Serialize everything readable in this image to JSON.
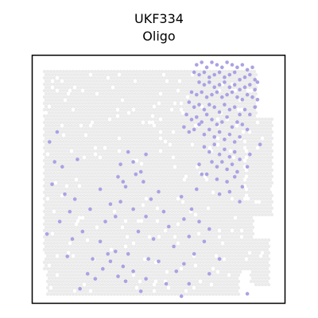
{
  "chart_data": {
    "type": "scatter",
    "title": "UKF334",
    "subtitle": "Oligo",
    "xlabel": "",
    "ylabel": "",
    "xlim": [
      0,
      100
    ],
    "ylim": [
      0,
      100
    ],
    "grid": false,
    "background_color": "#ebebeb",
    "highlight_color": "#a9a2e3",
    "frame_color": "#000000",
    "series": [
      {
        "values": [
          [
            65,
            96
          ],
          [
            67,
            97
          ],
          [
            69,
            95
          ],
          [
            71,
            97
          ],
          [
            73,
            96
          ],
          [
            75,
            95
          ],
          [
            77,
            97
          ],
          [
            79,
            96
          ],
          [
            81,
            95
          ],
          [
            83,
            96
          ],
          [
            85,
            94
          ],
          [
            64,
            93
          ],
          [
            66,
            92
          ],
          [
            68,
            93
          ],
          [
            70,
            91
          ],
          [
            72,
            92
          ],
          [
            74,
            93
          ],
          [
            76,
            91
          ],
          [
            78,
            92
          ],
          [
            80,
            93
          ],
          [
            82,
            90
          ],
          [
            84,
            91
          ],
          [
            86,
            92
          ],
          [
            88,
            90
          ],
          [
            87,
            95
          ],
          [
            66,
            89
          ],
          [
            68,
            88
          ],
          [
            70,
            89
          ],
          [
            72,
            87
          ],
          [
            74,
            88
          ],
          [
            76,
            89
          ],
          [
            78,
            87
          ],
          [
            80,
            88
          ],
          [
            82,
            86
          ],
          [
            84,
            87
          ],
          [
            86,
            88
          ],
          [
            88,
            86
          ],
          [
            89,
            89
          ],
          [
            63,
            85
          ],
          [
            65,
            84
          ],
          [
            67,
            85
          ],
          [
            69,
            83
          ],
          [
            71,
            84
          ],
          [
            73,
            85
          ],
          [
            75,
            83
          ],
          [
            77,
            84
          ],
          [
            79,
            85
          ],
          [
            81,
            83
          ],
          [
            83,
            82
          ],
          [
            85,
            84
          ],
          [
            87,
            83
          ],
          [
            89,
            82
          ],
          [
            62,
            81
          ],
          [
            64,
            79
          ],
          [
            66,
            80
          ],
          [
            68,
            78
          ],
          [
            70,
            80
          ],
          [
            72,
            79
          ],
          [
            74,
            77
          ],
          [
            76,
            80
          ],
          [
            78,
            78
          ],
          [
            80,
            79
          ],
          [
            82,
            76
          ],
          [
            84,
            78
          ],
          [
            86,
            76
          ],
          [
            88,
            79
          ],
          [
            61,
            76
          ],
          [
            63,
            74
          ],
          [
            65,
            75
          ],
          [
            67,
            73
          ],
          [
            69,
            76
          ],
          [
            71,
            74
          ],
          [
            73,
            72
          ],
          [
            75,
            73
          ],
          [
            77,
            75
          ],
          [
            79,
            71
          ],
          [
            81,
            73
          ],
          [
            83,
            72
          ],
          [
            85,
            70
          ],
          [
            60,
            71
          ],
          [
            62,
            69
          ],
          [
            64,
            70
          ],
          [
            66,
            72
          ],
          [
            68,
            68
          ],
          [
            70,
            70
          ],
          [
            72,
            67
          ],
          [
            74,
            69
          ],
          [
            76,
            66
          ],
          [
            78,
            68
          ],
          [
            80,
            65
          ],
          [
            82,
            67
          ],
          [
            68,
            63
          ],
          [
            70,
            61
          ],
          [
            72,
            64
          ],
          [
            74,
            60
          ],
          [
            76,
            62
          ],
          [
            78,
            59
          ],
          [
            80,
            61
          ],
          [
            82,
            58
          ],
          [
            71,
            57
          ],
          [
            73,
            55
          ],
          [
            75,
            57
          ],
          [
            77,
            54
          ],
          [
            79,
            56
          ],
          [
            81,
            53
          ],
          [
            69,
            52
          ],
          [
            73,
            50
          ],
          [
            77,
            49
          ],
          [
            80,
            51
          ],
          [
            83,
            47
          ],
          [
            85,
            55
          ],
          [
            86,
            60
          ],
          [
            90,
            64
          ],
          [
            74,
            44
          ],
          [
            78,
            45
          ],
          [
            82,
            41
          ],
          [
            65,
            46
          ],
          [
            67,
            52
          ],
          [
            66,
            56
          ],
          [
            41,
            52
          ],
          [
            44,
            49
          ],
          [
            37,
            47
          ],
          [
            47,
            42
          ],
          [
            40,
            38
          ],
          [
            50,
            45
          ],
          [
            45,
            35
          ],
          [
            52,
            37
          ],
          [
            35,
            41
          ],
          [
            42,
            29
          ],
          [
            54,
            31
          ],
          [
            48,
            26
          ],
          [
            56,
            23
          ],
          [
            60,
            34
          ],
          [
            62,
            27
          ],
          [
            59,
            43
          ],
          [
            63,
            38
          ],
          [
            66,
            33
          ],
          [
            64,
            20
          ],
          [
            68,
            25
          ],
          [
            70,
            30
          ],
          [
            57,
            13
          ],
          [
            50,
            17
          ],
          [
            46,
            18
          ],
          [
            38,
            20
          ],
          [
            33,
            21
          ],
          [
            27,
            25
          ],
          [
            28,
            14
          ],
          [
            31,
            17
          ],
          [
            34,
            11
          ],
          [
            36,
            15
          ],
          [
            40,
            13
          ],
          [
            37,
            9
          ],
          [
            30,
            20
          ],
          [
            24,
            18
          ],
          [
            19,
            6
          ],
          [
            22,
            12
          ],
          [
            25,
            10
          ],
          [
            43,
            5
          ],
          [
            45,
            10
          ],
          [
            53,
            8
          ],
          [
            59,
            3
          ],
          [
            60,
            16
          ],
          [
            62,
            8
          ],
          [
            70,
            12
          ],
          [
            74,
            18
          ],
          [
            85,
            4
          ],
          [
            7,
            65
          ],
          [
            9,
            57
          ],
          [
            10,
            69
          ],
          [
            8,
            48
          ],
          [
            12,
            55
          ],
          [
            13,
            44
          ],
          [
            15,
            37
          ],
          [
            17,
            42
          ],
          [
            11,
            33
          ],
          [
            16,
            26
          ],
          [
            20,
            29
          ],
          [
            14,
            19
          ],
          [
            6,
            28
          ],
          [
            18,
            58
          ],
          [
            27,
            46
          ],
          [
            31,
            40
          ],
          [
            33,
            35
          ],
          [
            23,
            38
          ],
          [
            38,
            61
          ],
          [
            35,
            56
          ],
          [
            40,
            57
          ],
          [
            43,
            53
          ],
          [
            36,
            49
          ],
          [
            45,
            60
          ],
          [
            34,
            51
          ],
          [
            29,
            33
          ]
        ]
      }
    ]
  }
}
